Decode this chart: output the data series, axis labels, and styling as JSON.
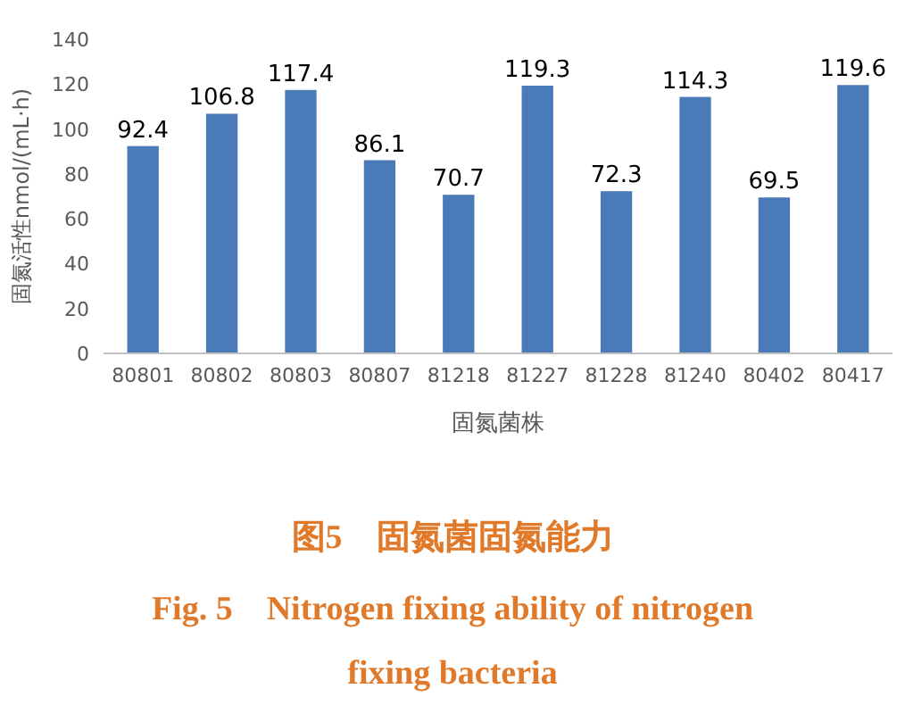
{
  "chart_data": {
    "type": "bar",
    "xlabel": "固氮菌株",
    "ylabel": "固氮活性nmol/(mL·h)",
    "categories": [
      "80801",
      "80802",
      "80803",
      "80807",
      "81218",
      "81227",
      "81228",
      "81240",
      "80402",
      "80417"
    ],
    "values": [
      92.4,
      106.8,
      117.4,
      86.1,
      70.7,
      119.3,
      72.3,
      114.3,
      69.5,
      119.6
    ],
    "color": "#4a7ab8",
    "ylim": [
      0,
      140
    ],
    "yticks": [
      0,
      20,
      40,
      60,
      80,
      100,
      120,
      140
    ],
    "data_labels": true,
    "grid": false,
    "annotations": [
      "图5　固氮菌固氮能力",
      "Fig. 5　Nitrogen fixing ability of nitrogen fixing bacteria"
    ]
  }
}
